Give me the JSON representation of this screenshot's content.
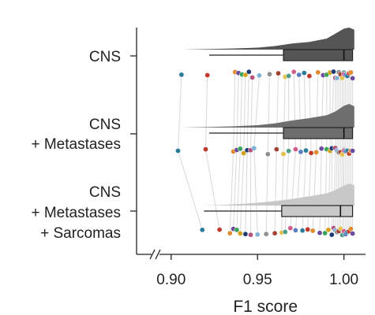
{
  "chart_data": {
    "type": "raincloud",
    "title": "",
    "xlabel": "F1 score",
    "ylabel": "",
    "xlim": [
      0.88,
      1.01
    ],
    "x_ticks": [
      0.9,
      0.95,
      1.0
    ],
    "x_tick_labels": [
      "0.90",
      "0.95",
      "1.00"
    ],
    "axis_break": "x-left",
    "grid": false,
    "legend": "none",
    "groups": [
      {
        "label_lines": [
          "CNS"
        ],
        "color": "#555555",
        "box": {
          "whisker_low": 0.922,
          "q1": 0.965,
          "median": 1.0,
          "q3": 1.005,
          "whisker_high": 1.005
        },
        "density": [
          [
            0.907,
            0.0
          ],
          [
            0.92,
            0.02
          ],
          [
            0.935,
            0.05
          ],
          [
            0.95,
            0.09
          ],
          [
            0.96,
            0.16
          ],
          [
            0.97,
            0.28
          ],
          [
            0.98,
            0.35
          ],
          [
            0.99,
            0.5
          ],
          [
            0.995,
            0.72
          ],
          [
            1.0,
            0.95
          ],
          [
            1.003,
            1.0
          ],
          [
            1.006,
            0.9
          ]
        ],
        "points": [
          0.906,
          0.921,
          0.937,
          0.939,
          0.941,
          0.943,
          0.945,
          0.947,
          0.951,
          0.957,
          0.962,
          0.966,
          0.968,
          0.971,
          0.974,
          0.977,
          0.98,
          0.985,
          0.988,
          0.99,
          0.992,
          0.994,
          0.995,
          0.996,
          0.997,
          0.998,
          0.999,
          1.0,
          1.0,
          1.001,
          1.002,
          1.003,
          1.004,
          1.005
        ]
      },
      {
        "label_lines": [
          "CNS",
          "+ Metastases"
        ],
        "color": "#6e6e6e",
        "box": {
          "whisker_low": 0.922,
          "q1": 0.965,
          "median": 1.0,
          "q3": 1.005,
          "whisker_high": 1.005
        },
        "density": [
          [
            0.906,
            0.0
          ],
          [
            0.92,
            0.02
          ],
          [
            0.935,
            0.05
          ],
          [
            0.95,
            0.1
          ],
          [
            0.96,
            0.18
          ],
          [
            0.97,
            0.3
          ],
          [
            0.98,
            0.4
          ],
          [
            0.99,
            0.52
          ],
          [
            0.995,
            0.68
          ],
          [
            1.0,
            0.92
          ],
          [
            1.003,
            1.0
          ],
          [
            1.006,
            0.9
          ]
        ],
        "points": [
          0.904,
          0.92,
          0.936,
          0.938,
          0.94,
          0.942,
          0.944,
          0.946,
          0.948,
          0.956,
          0.961,
          0.965,
          0.968,
          0.972,
          0.975,
          0.978,
          0.981,
          0.984,
          0.987,
          0.99,
          0.992,
          0.993,
          0.995,
          0.996,
          0.997,
          0.998,
          0.999,
          1.0,
          1.0,
          1.001,
          1.002,
          1.003,
          1.004,
          1.005
        ]
      },
      {
        "label_lines": [
          "CNS",
          "+ Metastases",
          "+ Sarcomas"
        ],
        "color": "#c8c8c8",
        "box": {
          "whisker_low": 0.919,
          "q1": 0.964,
          "median": 0.998,
          "q3": 1.005,
          "whisker_high": 1.005
        },
        "density": [
          [
            0.918,
            0.0
          ],
          [
            0.93,
            0.03
          ],
          [
            0.94,
            0.07
          ],
          [
            0.95,
            0.13
          ],
          [
            0.96,
            0.2
          ],
          [
            0.97,
            0.3
          ],
          [
            0.98,
            0.42
          ],
          [
            0.99,
            0.55
          ],
          [
            0.995,
            0.7
          ],
          [
            1.0,
            0.9
          ],
          [
            1.003,
            1.0
          ],
          [
            1.006,
            0.92
          ]
        ],
        "points": [
          0.918,
          0.928,
          0.934,
          0.936,
          0.938,
          0.94,
          0.943,
          0.946,
          0.95,
          0.955,
          0.96,
          0.964,
          0.966,
          0.969,
          0.972,
          0.976,
          0.979,
          0.982,
          0.986,
          0.989,
          0.991,
          0.993,
          0.994,
          0.995,
          0.996,
          0.997,
          0.998,
          0.999,
          1.0,
          1.001,
          1.002,
          1.003,
          1.004,
          1.005
        ]
      }
    ],
    "point_colors": [
      "#2a7a9a",
      "#c0392b",
      "#e08a2e",
      "#6b4aa0",
      "#3aa35a",
      "#d4a017",
      "#1f3b73",
      "#b5527e",
      "#7fb3d5",
      "#8e8e8e",
      "#a04030",
      "#e3c04a",
      "#4e9f8a",
      "#d35d8a",
      "#5b7ec2"
    ]
  }
}
